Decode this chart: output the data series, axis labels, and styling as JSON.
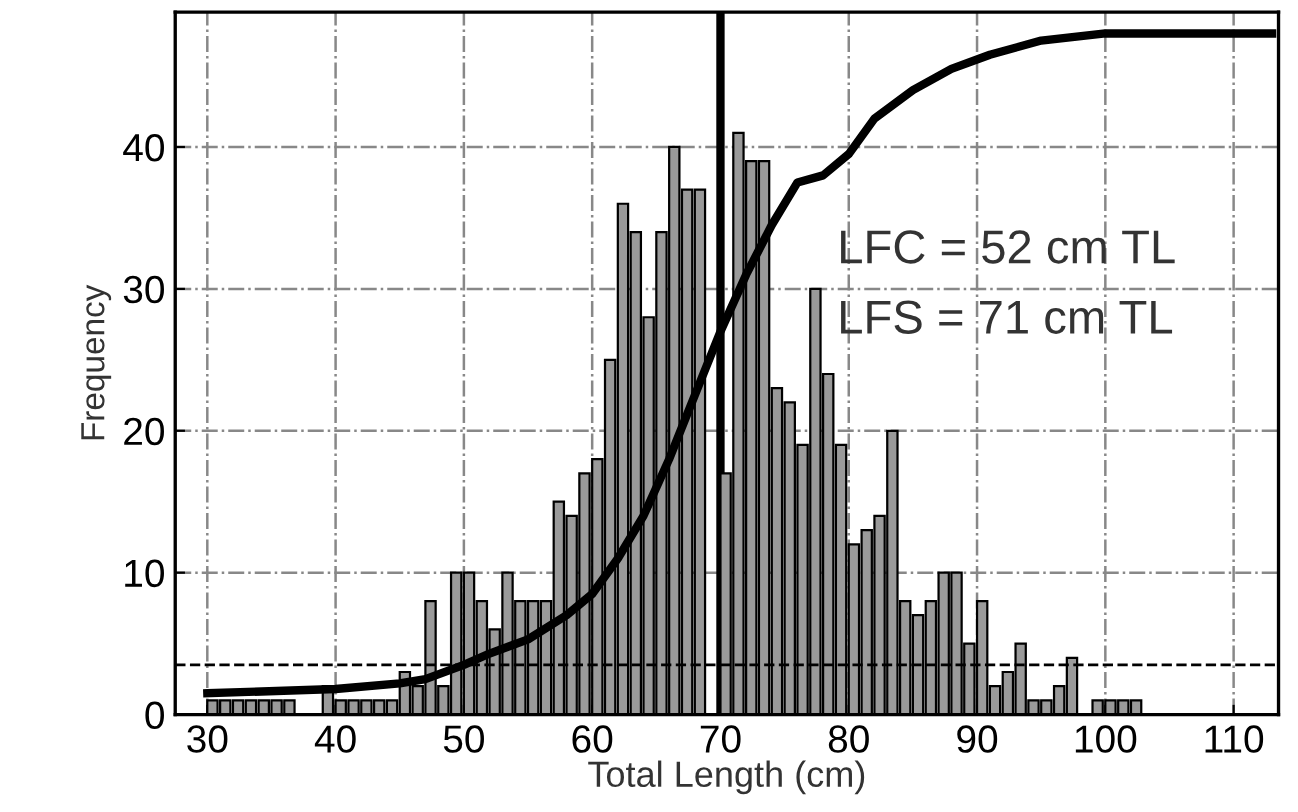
{
  "chart_data": {
    "type": "histogram",
    "xlabel": "Total Length (cm)",
    "ylabel": "Frequency",
    "series": [
      {
        "color": "#9a9a9a",
        "bins": [
          30,
          31,
          32,
          33,
          34,
          35,
          36,
          37,
          38,
          39,
          40,
          41,
          42,
          43,
          44,
          45,
          46,
          47,
          48,
          49,
          50,
          51,
          52,
          53,
          54,
          55,
          56,
          57,
          58,
          59,
          60,
          61,
          62,
          63,
          64,
          65,
          66,
          67,
          68,
          69,
          70,
          71,
          72,
          73,
          74,
          75,
          76,
          77,
          78,
          79,
          80,
          81,
          82,
          83,
          84,
          85,
          86,
          87,
          88,
          89,
          90,
          91,
          92,
          93,
          94,
          95,
          96,
          97,
          98,
          99,
          100,
          101,
          102,
          103,
          104
        ],
        "values": [
          1,
          1,
          1,
          1,
          1,
          1,
          1,
          0,
          0,
          2,
          1,
          1,
          1,
          1,
          1,
          3,
          2,
          8,
          2,
          10,
          10,
          8,
          6,
          10,
          8,
          8,
          8,
          15,
          14,
          17,
          18,
          25,
          36,
          34,
          28,
          34,
          40,
          37,
          37,
          null,
          17,
          41,
          39,
          39,
          23,
          22,
          19,
          30,
          24,
          19,
          12,
          13,
          14,
          20,
          8,
          7,
          8,
          10,
          10,
          5,
          8,
          2,
          3,
          5,
          1,
          1,
          2,
          4,
          0,
          1,
          1,
          1,
          1,
          0
        ]
      },
      {
        "type": "line",
        "color": "#000000",
        "x": [
          30,
          40,
          45,
          47,
          50,
          52,
          55,
          58,
          60,
          62,
          64,
          66,
          68,
          70,
          72,
          74,
          76,
          78,
          80,
          82,
          85,
          88,
          91,
          95,
          100,
          113
        ],
        "values": [
          1.5,
          1.8,
          2.2,
          2.5,
          3.5,
          4.3,
          5.3,
          7,
          8.5,
          11,
          14,
          18,
          22.5,
          27,
          31,
          34.5,
          37.5,
          38,
          39.5,
          42,
          44,
          45.5,
          46.5,
          47.5,
          48,
          48
        ]
      }
    ],
    "ref_lines": [
      {
        "axis": "x",
        "value": 70,
        "color": "#000000",
        "line_style": "solid"
      },
      {
        "axis": "y",
        "value": 3.5,
        "color": "#000000",
        "line_style": "dashed"
      }
    ],
    "annotations": [
      "LFC = 52 cm TL",
      "LFS = 71 cm TL"
    ],
    "xlim": [
      27.5,
      113.5
    ],
    "ylim": [
      0,
      49.5
    ],
    "xticks": [
      30,
      40,
      50,
      60,
      70,
      80,
      90,
      100,
      110
    ],
    "yticks": [
      0,
      10,
      20,
      30,
      40
    ],
    "grid": true,
    "legend": false
  }
}
